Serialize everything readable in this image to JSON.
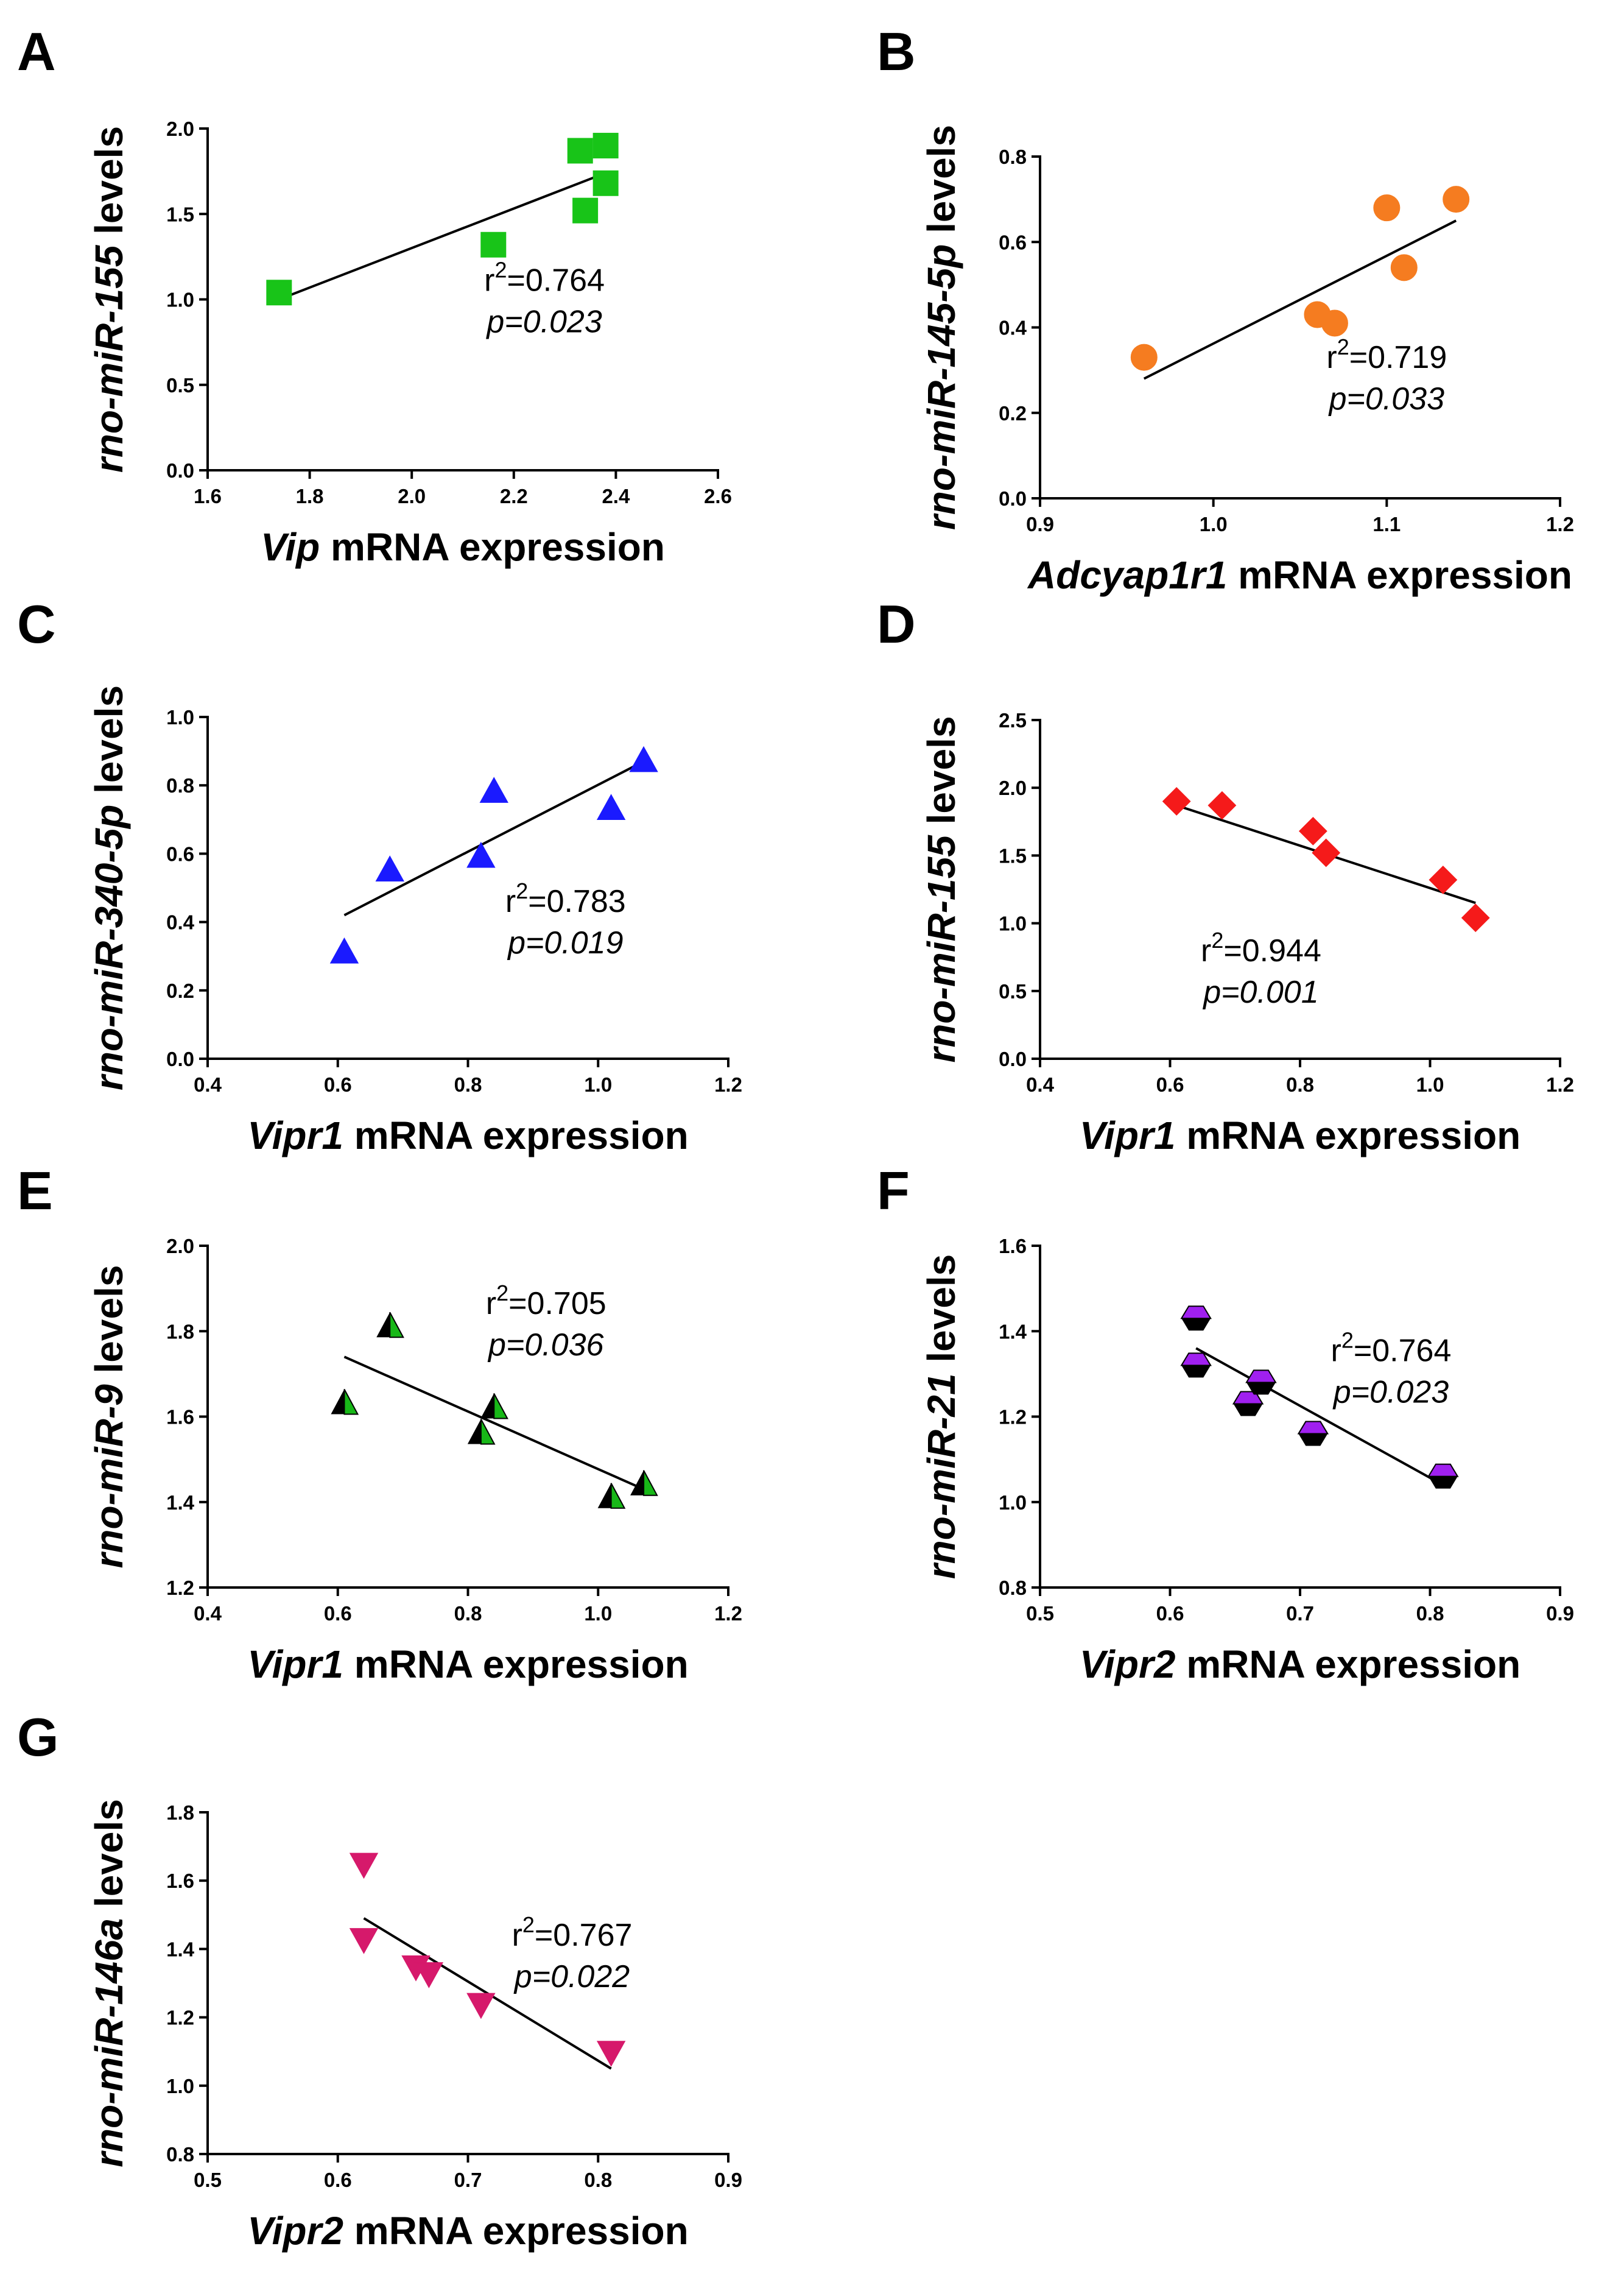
{
  "chart_data": [
    {
      "panel": "A",
      "type": "scatter",
      "ylabel_gene": "rno-miR-155",
      "ylabel_rest": " levels",
      "xlabel_gene": "Vip",
      "xlabel_rest": " mRNA expression",
      "xlim": [
        1.6,
        2.6
      ],
      "xticks": [
        1.6,
        1.8,
        2.0,
        2.2,
        2.4,
        2.6
      ],
      "xdec": 1,
      "ylim": [
        0.0,
        2.0
      ],
      "yticks": [
        0.0,
        0.5,
        1.0,
        1.5,
        2.0
      ],
      "ydec": 1,
      "points": [
        [
          1.74,
          1.04
        ],
        [
          2.16,
          1.32
        ],
        [
          2.33,
          1.87
        ],
        [
          2.38,
          1.9
        ],
        [
          2.38,
          1.68
        ],
        [
          2.34,
          1.52
        ]
      ],
      "fit": [
        [
          1.74,
          1.0
        ],
        [
          2.38,
          1.74
        ]
      ],
      "marker": "square",
      "color": "#18c418",
      "stroke": "#18c418",
      "r2_prefix": "r",
      "r2_exp": "2",
      "r2_value": "=0.764",
      "p_text": "p=0.023",
      "stat_pos": [
        2.26,
        1.05
      ]
    },
    {
      "panel": "B",
      "type": "scatter",
      "ylabel_gene": "rno-miR-145-5p",
      "ylabel_rest": " levels",
      "xlabel_gene": "Adcyap1r1",
      "xlabel_rest": " mRNA expression",
      "xlim": [
        0.9,
        1.2
      ],
      "xticks": [
        0.9,
        1.0,
        1.1,
        1.2
      ],
      "xdec": 1,
      "ylim": [
        0.0,
        0.8
      ],
      "yticks": [
        0.0,
        0.2,
        0.4,
        0.6,
        0.8
      ],
      "ydec": 1,
      "points": [
        [
          0.96,
          0.33
        ],
        [
          1.06,
          0.43
        ],
        [
          1.07,
          0.41
        ],
        [
          1.1,
          0.68
        ],
        [
          1.11,
          0.54
        ],
        [
          1.14,
          0.7
        ]
      ],
      "fit": [
        [
          0.96,
          0.28
        ],
        [
          1.14,
          0.65
        ]
      ],
      "marker": "circle",
      "color": "#f57c20",
      "stroke": "#f57c20",
      "r2_prefix": "r",
      "r2_exp": "2",
      "r2_value": "=0.719",
      "p_text": "p=0.033",
      "stat_pos": [
        1.1,
        0.305
      ]
    },
    {
      "panel": "C",
      "type": "scatter",
      "ylabel_gene": "rno-miR-340-5p",
      "ylabel_rest": " levels",
      "xlabel_gene": "Vipr1",
      "xlabel_rest": " mRNA expression",
      "xlim": [
        0.4,
        1.2
      ],
      "xticks": [
        0.4,
        0.6,
        0.8,
        1.0,
        1.2
      ],
      "xdec": 1,
      "ylim": [
        0.0,
        1.0
      ],
      "yticks": [
        0.0,
        0.2,
        0.4,
        0.6,
        0.8,
        1.0
      ],
      "ydec": 1,
      "points": [
        [
          0.61,
          0.31
        ],
        [
          0.68,
          0.55
        ],
        [
          0.82,
          0.59
        ],
        [
          0.84,
          0.78
        ],
        [
          1.02,
          0.73
        ],
        [
          1.07,
          0.87
        ]
      ],
      "fit": [
        [
          0.61,
          0.42
        ],
        [
          1.07,
          0.87
        ]
      ],
      "marker": "triangle-up",
      "color": "#1a1aff",
      "stroke": "#1a1aff",
      "r2_prefix": "r",
      "r2_exp": "2",
      "r2_value": "=0.783",
      "p_text": "p=0.019",
      "stat_pos": [
        0.95,
        0.43
      ]
    },
    {
      "panel": "D",
      "type": "scatter",
      "ylabel_gene": "rno-miR-155",
      "ylabel_rest": " levels",
      "xlabel_gene": "Vipr1",
      "xlabel_rest": " mRNA expression",
      "xlim": [
        0.4,
        1.2
      ],
      "xticks": [
        0.4,
        0.6,
        0.8,
        1.0,
        1.2
      ],
      "xdec": 1,
      "ylim": [
        0.0,
        2.5
      ],
      "yticks": [
        0.0,
        0.5,
        1.0,
        1.5,
        2.0,
        2.5
      ],
      "ydec": 1,
      "points": [
        [
          0.61,
          1.9
        ],
        [
          0.68,
          1.87
        ],
        [
          0.82,
          1.68
        ],
        [
          0.84,
          1.52
        ],
        [
          1.02,
          1.32
        ],
        [
          1.07,
          1.04
        ]
      ],
      "fit": [
        [
          0.61,
          1.87
        ],
        [
          1.07,
          1.15
        ]
      ],
      "marker": "diamond",
      "color": "#f51a1a",
      "stroke": "#f51a1a",
      "r2_prefix": "r",
      "r2_exp": "2",
      "r2_value": "=0.944",
      "p_text": "p=0.001",
      "stat_pos": [
        0.74,
        0.72
      ]
    },
    {
      "panel": "E",
      "type": "scatter",
      "ylabel_gene": "rno-miR-9",
      "ylabel_rest": " levels",
      "xlabel_gene": "Vipr1",
      "xlabel_rest": " mRNA expression",
      "xlim": [
        0.4,
        1.2
      ],
      "xticks": [
        0.4,
        0.6,
        0.8,
        1.0,
        1.2
      ],
      "xdec": 1,
      "ylim": [
        1.2,
        2.0
      ],
      "yticks": [
        1.2,
        1.4,
        1.6,
        1.8,
        2.0
      ],
      "ydec": 1,
      "points": [
        [
          0.61,
          1.63
        ],
        [
          0.68,
          1.81
        ],
        [
          0.82,
          1.56
        ],
        [
          0.84,
          1.62
        ],
        [
          1.02,
          1.41
        ],
        [
          1.07,
          1.44
        ]
      ],
      "fit": [
        [
          0.61,
          1.74
        ],
        [
          1.07,
          1.43
        ]
      ],
      "marker": "triangle-split",
      "color": "#18b818",
      "stroke": "#000000",
      "r2_prefix": "r",
      "r2_exp": "2",
      "r2_value": "=0.705",
      "p_text": "p=0.036",
      "stat_pos": [
        0.92,
        1.84
      ]
    },
    {
      "panel": "F",
      "type": "scatter",
      "ylabel_gene": "rno-miR-21",
      "ylabel_rest": " levels",
      "xlabel_gene": "Vipr2",
      "xlabel_rest": " mRNA expression",
      "xlim": [
        0.5,
        0.9
      ],
      "xticks": [
        0.5,
        0.6,
        0.7,
        0.8,
        0.9
      ],
      "xdec": 1,
      "ylim": [
        0.8,
        1.6
      ],
      "yticks": [
        0.8,
        1.0,
        1.2,
        1.4,
        1.6
      ],
      "ydec": 1,
      "points": [
        [
          0.62,
          1.43
        ],
        [
          0.62,
          1.32
        ],
        [
          0.66,
          1.23
        ],
        [
          0.67,
          1.28
        ],
        [
          0.71,
          1.16
        ],
        [
          0.81,
          1.06
        ]
      ],
      "fit": [
        [
          0.62,
          1.36
        ],
        [
          0.81,
          1.04
        ]
      ],
      "marker": "hexagon-split",
      "color": "#a020f0",
      "stroke": "#000000",
      "r2_prefix": "r",
      "r2_exp": "2",
      "r2_value": "=0.764",
      "p_text": "p=0.023",
      "stat_pos": [
        0.77,
        1.33
      ]
    },
    {
      "panel": "G",
      "type": "scatter",
      "ylabel_gene": "rno-miR-146a",
      "ylabel_rest": " levels",
      "xlabel_gene": "Vipr2",
      "xlabel_rest": " mRNA expression",
      "xlim": [
        0.5,
        0.9
      ],
      "xticks": [
        0.5,
        0.6,
        0.7,
        0.8,
        0.9
      ],
      "xdec": 1,
      "ylim": [
        0.8,
        1.8
      ],
      "yticks": [
        0.8,
        1.0,
        1.2,
        1.4,
        1.6,
        1.8
      ],
      "ydec": 1,
      "points": [
        [
          0.62,
          1.65
        ],
        [
          0.62,
          1.43
        ],
        [
          0.66,
          1.35
        ],
        [
          0.67,
          1.33
        ],
        [
          0.71,
          1.24
        ],
        [
          0.81,
          1.1
        ]
      ],
      "fit": [
        [
          0.62,
          1.49
        ],
        [
          0.81,
          1.05
        ]
      ],
      "marker": "triangle-down",
      "color": "#d6196b",
      "stroke": "#d6196b",
      "r2_prefix": "r",
      "r2_exp": "2",
      "r2_value": "=0.767",
      "p_text": "p=0.022",
      "stat_pos": [
        0.78,
        1.41
      ]
    }
  ]
}
